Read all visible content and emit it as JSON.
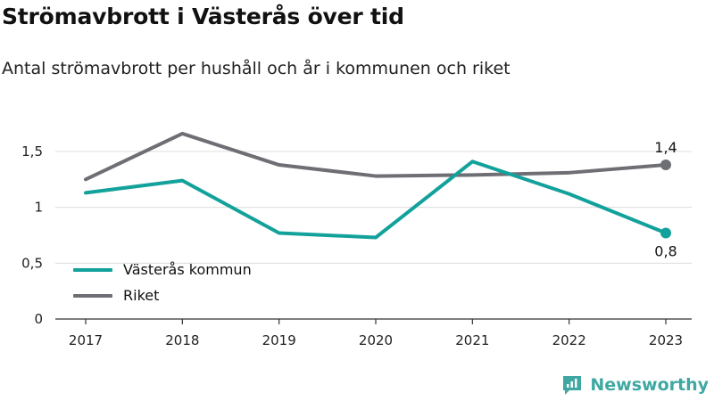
{
  "colors": {
    "vasteras": "#13a19b",
    "riket": "#6e6e75",
    "grid": "#dcdcdc",
    "brand": "#3fa8a2"
  },
  "header": {
    "title": "Strömavbrott i Västerås över tid",
    "subtitle": "Antal strömavbrott per hushåll och år i kommunen och riket"
  },
  "chart_data": {
    "type": "line",
    "title": "Strömavbrott i Västerås över tid",
    "subtitle": "Antal strömavbrott per hushåll och år i kommunen och riket",
    "xlabel": "",
    "ylabel": "",
    "x": [
      "2017",
      "2018",
      "2019",
      "2020",
      "2021",
      "2022",
      "2023"
    ],
    "ylim": [
      0,
      1.5
    ],
    "yticks": [
      0,
      0.5,
      1,
      1.5
    ],
    "ytick_labels": [
      "0",
      "0,5",
      "1",
      "1,5"
    ],
    "grid": true,
    "legend_position": "bottom-left",
    "series": [
      {
        "name": "Västerås kommun",
        "color": "#13a19b",
        "values": [
          1.13,
          1.24,
          0.77,
          0.73,
          1.41,
          1.12,
          0.77
        ],
        "end_label": "0,8"
      },
      {
        "name": "Riket",
        "color": "#6e6e75",
        "values": [
          1.25,
          1.66,
          1.38,
          1.28,
          1.29,
          1.31,
          1.38
        ],
        "end_label": "1,4"
      }
    ]
  },
  "legend": [
    {
      "label": "Västerås kommun",
      "color": "#13a19b"
    },
    {
      "label": "Riket",
      "color": "#6e6e75"
    }
  ],
  "brand": {
    "name": "Newsworthy",
    "icon": "newsworthy-logo-icon"
  }
}
